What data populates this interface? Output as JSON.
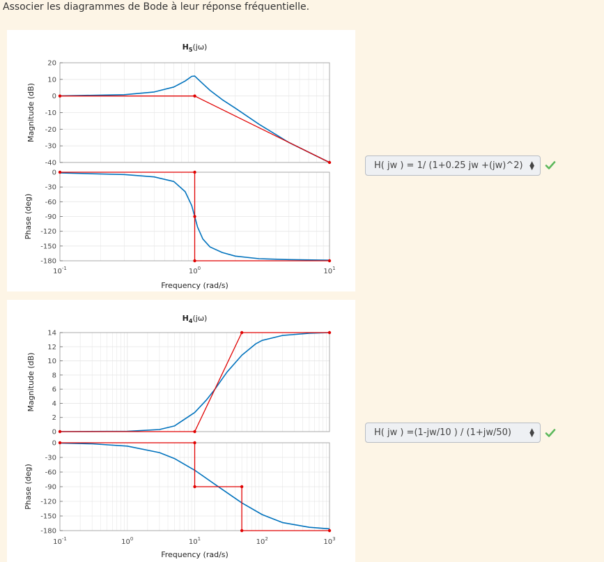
{
  "question": {
    "text": "Associer les diagrammes de Bode à leur réponse fréquentielle."
  },
  "answers": [
    {
      "value": "H( jw ) = 1/ (1+0.25 jw +(jw)^2)",
      "status": "correct",
      "status_color": "#5cb85c"
    },
    {
      "value": "H( jw ) =(1-jw/10 ) / (1+jw/50)",
      "status": "correct",
      "status_color": "#5cb85c"
    }
  ],
  "colors": {
    "exact_curve": "#0072bd",
    "asymptote": "#e00000",
    "grid": "#e6e6e6",
    "axis": "#333333"
  },
  "chart_data": [
    {
      "type": "line",
      "title_main": "H",
      "title_sub": "5",
      "title_arg": "(jω)",
      "xlabel": "Frequency  (rad/s)",
      "x_scale": "log",
      "xlim": [
        0.1,
        10
      ],
      "x_tick_base": [
        "10",
        "10",
        "10"
      ],
      "x_tick_exp": [
        "-1",
        "0",
        "1"
      ],
      "magnitude": {
        "ylabel": "Magnitude (dB)",
        "ylim": [
          -40,
          20
        ],
        "yticks": [
          20,
          10,
          0,
          -10,
          -20,
          -30,
          -40
        ],
        "series": [
          {
            "x": [
              0.1,
              0.3,
              0.5,
              0.7,
              0.85,
              0.95,
              1.0,
              1.1,
              1.3,
              1.6,
              2,
              3,
              5,
              10
            ],
            "y": [
              0.09,
              0.8,
              2.4,
              5.4,
              9.0,
              11.8,
              12.0,
              8.8,
              3.4,
              -2.2,
              -7.3,
              -17.0,
              -28.0,
              -40.0
            ]
          },
          {
            "x": [
              0.1,
              1.0,
              10
            ],
            "y": [
              0,
              0,
              -40
            ]
          }
        ]
      },
      "phase": {
        "ylabel": "Phase (deg)",
        "ylim": [
          -180,
          0
        ],
        "yticks": [
          0,
          -30,
          -60,
          -90,
          -120,
          -150,
          -180
        ],
        "series": [
          {
            "x": [
              0.1,
              0.3,
              0.5,
              0.7,
              0.85,
              0.95,
              1.0,
              1.05,
              1.15,
              1.3,
              1.6,
              2,
              3,
              5,
              10
            ],
            "y": [
              -1.4,
              -4.7,
              -9.5,
              -18.9,
              -39.5,
              -67.8,
              -90,
              -111.5,
              -135.8,
              -151.9,
              -163.1,
              -170.5,
              -175.7,
              -177.6,
              -178.9
            ]
          },
          {
            "x": [
              0.1,
              1.0,
              1.0,
              1.0,
              10
            ],
            "y": [
              0,
              0,
              -90,
              -180,
              -180
            ]
          }
        ]
      }
    },
    {
      "type": "line",
      "title_main": "H",
      "title_sub": "4",
      "title_arg": "(jω)",
      "xlabel": "Frequency  (rad/s)",
      "x_scale": "log",
      "xlim": [
        0.1,
        1000
      ],
      "x_tick_base": [
        "10",
        "10",
        "10",
        "10",
        "10"
      ],
      "x_tick_exp": [
        "-1",
        "0",
        "1",
        "2",
        "3"
      ],
      "magnitude": {
        "ylabel": "Magnitude (dB)",
        "ylim": [
          0,
          14
        ],
        "yticks": [
          14,
          12,
          10,
          8,
          6,
          4,
          2,
          0
        ],
        "series": [
          {
            "x": [
              0.1,
              1,
              3,
              5,
              10,
              15,
              20,
              30,
              50,
              80,
              100,
              200,
              500,
              1000
            ],
            "y": [
              0.0,
              0.04,
              0.3,
              0.8,
              2.7,
              4.5,
              6.0,
              8.4,
              10.8,
              12.4,
              12.9,
              13.6,
              13.9,
              14.0
            ]
          },
          {
            "x": [
              0.1,
              10,
              50,
              1000
            ],
            "y": [
              0,
              0,
              14,
              14
            ]
          }
        ]
      },
      "phase": {
        "ylabel": "Phase (deg)",
        "ylim": [
          -180,
          0
        ],
        "yticks": [
          0,
          -30,
          -60,
          -90,
          -120,
          -150,
          -180
        ],
        "series": [
          {
            "x": [
              0.1,
              0.3,
              1,
              3,
              5,
              10,
              20,
              50,
              100,
              200,
              500,
              1000
            ],
            "y": [
              -0.7,
              -2.1,
              -6.9,
              -20.1,
              -32.3,
              -56.3,
              -85.3,
              -123.2,
              -147.1,
              -163.5,
              -173.2,
              -176.3
            ]
          },
          {
            "x": [
              0.1,
              10,
              10,
              50,
              50,
              1000
            ],
            "y": [
              0,
              0,
              -90,
              -90,
              -180,
              -180
            ]
          }
        ]
      }
    }
  ]
}
